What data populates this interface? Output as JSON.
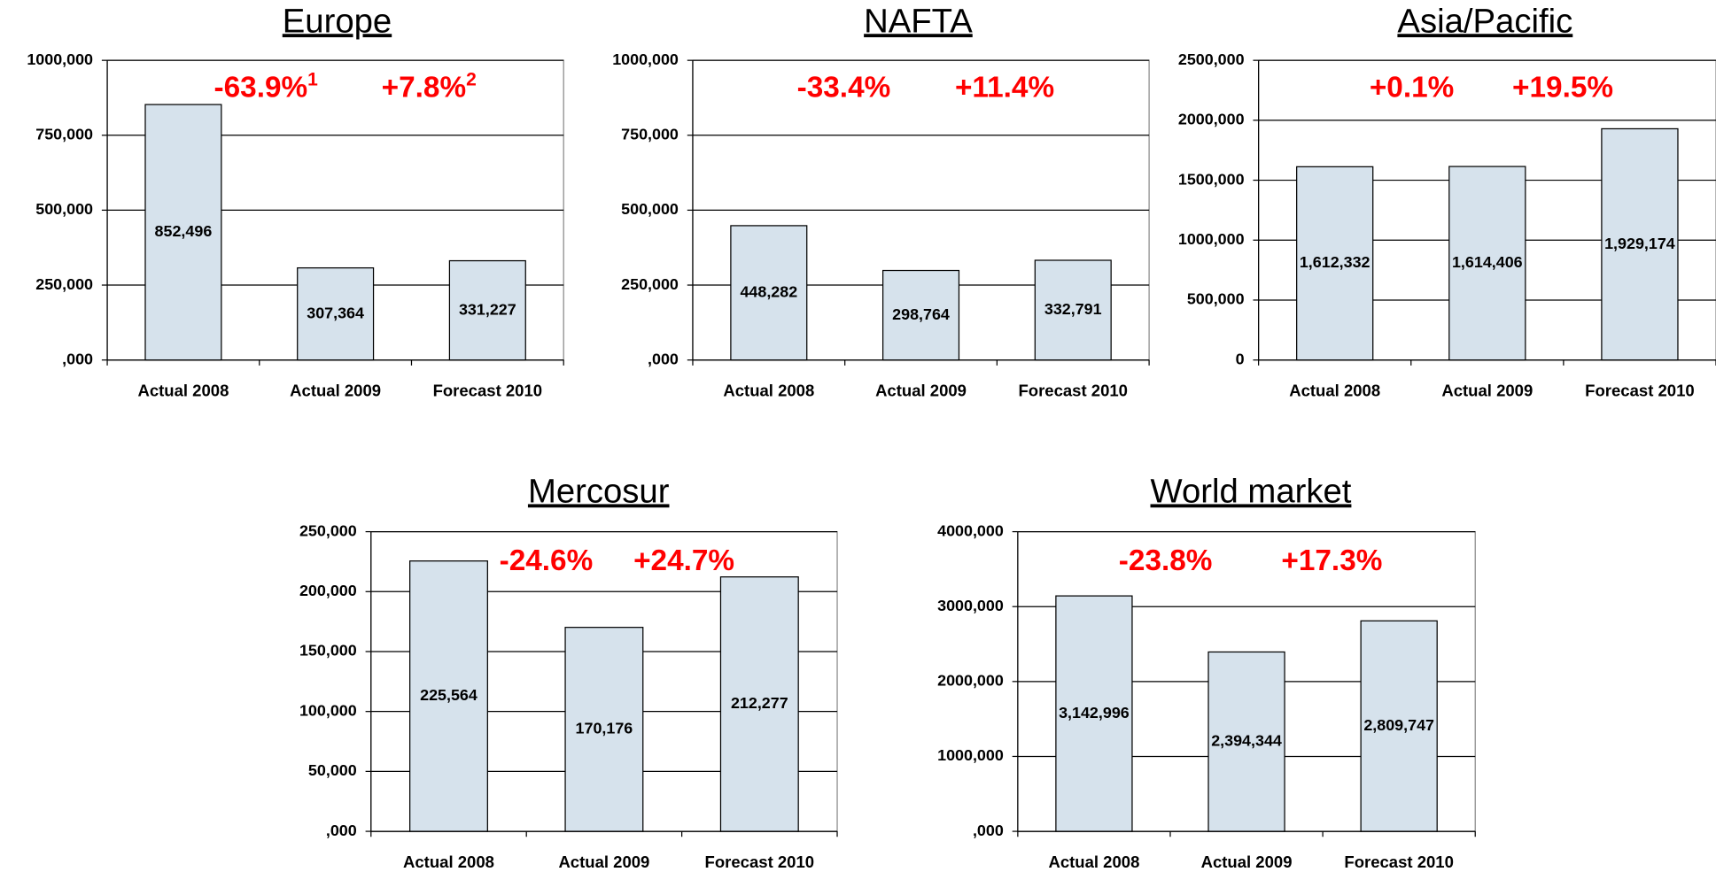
{
  "chart_data": [
    {
      "type": "bar",
      "title": "Europe",
      "categories": [
        "Actual 2008",
        "Actual 2009",
        "Forecast 2010"
      ],
      "values": [
        852496,
        307364,
        331227
      ],
      "value_labels": [
        "852,496",
        "307,364",
        "331,227"
      ],
      "ylim": [
        0,
        1000000
      ],
      "yticks": [
        {
          "value": 0,
          "label": ",000"
        },
        {
          "value": 250000,
          "label": "250,000"
        },
        {
          "value": 500000,
          "label": "500,000"
        },
        {
          "value": 750000,
          "label": "750,000"
        },
        {
          "value": 1000000,
          "label": "1000,000"
        }
      ],
      "annotations": [
        {
          "text": "-63.9%",
          "sup": "1"
        },
        {
          "text": "+7.8%",
          "sup": "2"
        }
      ],
      "color": "#d6e2ec",
      "grid": true
    },
    {
      "type": "bar",
      "title": "NAFTA",
      "categories": [
        "Actual 2008",
        "Actual 2009",
        "Forecast 2010"
      ],
      "values": [
        448282,
        298764,
        332791
      ],
      "value_labels": [
        "448,282",
        "298,764",
        "332,791"
      ],
      "ylim": [
        0,
        1000000
      ],
      "yticks": [
        {
          "value": 0,
          "label": ",000"
        },
        {
          "value": 250000,
          "label": "250,000"
        },
        {
          "value": 500000,
          "label": "500,000"
        },
        {
          "value": 750000,
          "label": "750,000"
        },
        {
          "value": 1000000,
          "label": "1000,000"
        }
      ],
      "annotations": [
        {
          "text": "-33.4%"
        },
        {
          "text": "+11.4%"
        }
      ],
      "color": "#d6e2ec",
      "grid": true
    },
    {
      "type": "bar",
      "title": "Asia/Pacific",
      "categories": [
        "Actual 2008",
        "Actual 2009",
        "Forecast 2010"
      ],
      "values": [
        1612332,
        1614406,
        1929174
      ],
      "value_labels": [
        "1,612,332",
        "1,614,406",
        "1,929,174"
      ],
      "ylim": [
        0,
        2500000
      ],
      "yticks": [
        0,
        {
          "value": 500000,
          "label": "500,000"
        },
        {
          "value": 1000000,
          "label": "1000,000"
        },
        {
          "value": 1500000,
          "label": "1500,000"
        },
        {
          "value": 2000000,
          "label": "2000,000"
        },
        {
          "value": 2500000,
          "label": "2500,000"
        }
      ],
      "annotations": [
        {
          "text": "+0.1%"
        },
        {
          "text": "+19.5%"
        }
      ],
      "color": "#d6e2ec",
      "grid": true
    },
    {
      "type": "bar",
      "title": "Mercosur",
      "categories": [
        "Actual 2008",
        "Actual 2009",
        "Forecast 2010"
      ],
      "values": [
        225564,
        170176,
        212277
      ],
      "value_labels": [
        "225,564",
        "170,176",
        "212,277"
      ],
      "ylim": [
        0,
        250000
      ],
      "yticks": [
        {
          "value": 0,
          "label": ",000"
        },
        {
          "value": 50000,
          "label": "50,000"
        },
        {
          "value": 100000,
          "label": "100,000"
        },
        {
          "value": 150000,
          "label": "150,000"
        },
        {
          "value": 200000,
          "label": "200,000"
        },
        {
          "value": 250000,
          "label": "250,000"
        }
      ],
      "annotations": [
        {
          "text": "-24.6%"
        },
        {
          "text": "+24.7%"
        }
      ],
      "color": "#d6e2ec",
      "grid": true
    },
    {
      "type": "bar",
      "title": "World market",
      "categories": [
        "Actual 2008",
        "Actual 2009",
        "Forecast 2010"
      ],
      "values": [
        3142996,
        2394344,
        2809747
      ],
      "value_labels": [
        "3,142,996",
        "2,394,344",
        "2,809,747"
      ],
      "ylim": [
        0,
        4000000
      ],
      "yticks": [
        {
          "value": 0,
          "label": ",000"
        },
        {
          "value": 1000000,
          "label": "1000,000"
        },
        {
          "value": 2000000,
          "label": "2000,000"
        },
        {
          "value": 3000000,
          "label": "3000,000"
        },
        {
          "value": 4000000,
          "label": "4000,000"
        }
      ],
      "annotations": [
        {
          "text": "-23.8%"
        },
        {
          "text": "+17.3%"
        }
      ],
      "color": "#d6e2ec",
      "grid": true
    }
  ]
}
